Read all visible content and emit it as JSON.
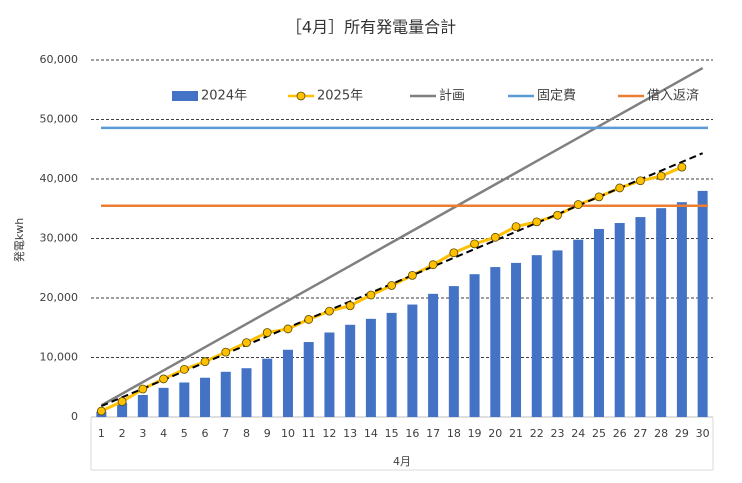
{
  "chart_data": {
    "type": "combo",
    "title": "［4月］所有発電量合計",
    "x_label": "4月",
    "y_label": "発電kwh",
    "categories": [
      "1",
      "2",
      "3",
      "4",
      "5",
      "6",
      "7",
      "8",
      "9",
      "10",
      "11",
      "12",
      "13",
      "14",
      "15",
      "16",
      "17",
      "18",
      "19",
      "20",
      "21",
      "22",
      "23",
      "24",
      "25",
      "26",
      "27",
      "28",
      "29",
      "30"
    ],
    "series": [
      {
        "name": "2024年",
        "kind": "bar",
        "color": "#4472c4",
        "values": [
          900,
          2400,
          3700,
          4900,
          5800,
          6600,
          7600,
          8200,
          9800,
          11300,
          12600,
          14200,
          15500,
          16500,
          17500,
          18900,
          20700,
          22000,
          24000,
          25200,
          25900,
          27200,
          28000,
          29800,
          31600,
          32600,
          33600,
          35100,
          36100,
          38000
        ]
      },
      {
        "name": "2025年",
        "kind": "line",
        "marker": true,
        "color": "#ffc000",
        "values": [
          1000,
          2600,
          4700,
          6400,
          8000,
          9300,
          10900,
          12500,
          14200,
          14800,
          16400,
          17800,
          18700,
          20500,
          22100,
          23800,
          25600,
          27600,
          29100,
          30200,
          32000,
          32800,
          33900,
          35700,
          37000,
          38500,
          39700,
          40500,
          42000,
          null
        ]
      },
      {
        "name": "計画",
        "kind": "line",
        "marker": false,
        "color": "#808080",
        "values": [
          1955,
          3910,
          5865,
          7820,
          9775,
          11730,
          13685,
          15640,
          17595,
          19550,
          21505,
          23460,
          25415,
          27370,
          29325,
          31280,
          33235,
          35190,
          37145,
          39100,
          41055,
          43010,
          44965,
          46920,
          48875,
          50830,
          52785,
          54740,
          56695,
          58650
        ]
      },
      {
        "name": "固定費",
        "kind": "hline",
        "color": "#5b9bd5",
        "value": 48600
      },
      {
        "name": "借入返済",
        "kind": "hline",
        "color": "#ed7d31",
        "value": 35500
      }
    ],
    "trendline": {
      "series": 1,
      "color": "#000000"
    },
    "ylim": [
      0,
      60000
    ],
    "yticks": [
      0,
      {
        "value": 10000,
        "label": "10,000"
      },
      {
        "value": 20000,
        "label": "20,000"
      },
      {
        "value": 30000,
        "label": "30,000"
      },
      {
        "value": 40000,
        "label": "40,000"
      },
      {
        "value": 50000,
        "label": "50,000"
      },
      {
        "value": 60000,
        "label": "60,000"
      }
    ],
    "grid": true,
    "legend": "top"
  }
}
